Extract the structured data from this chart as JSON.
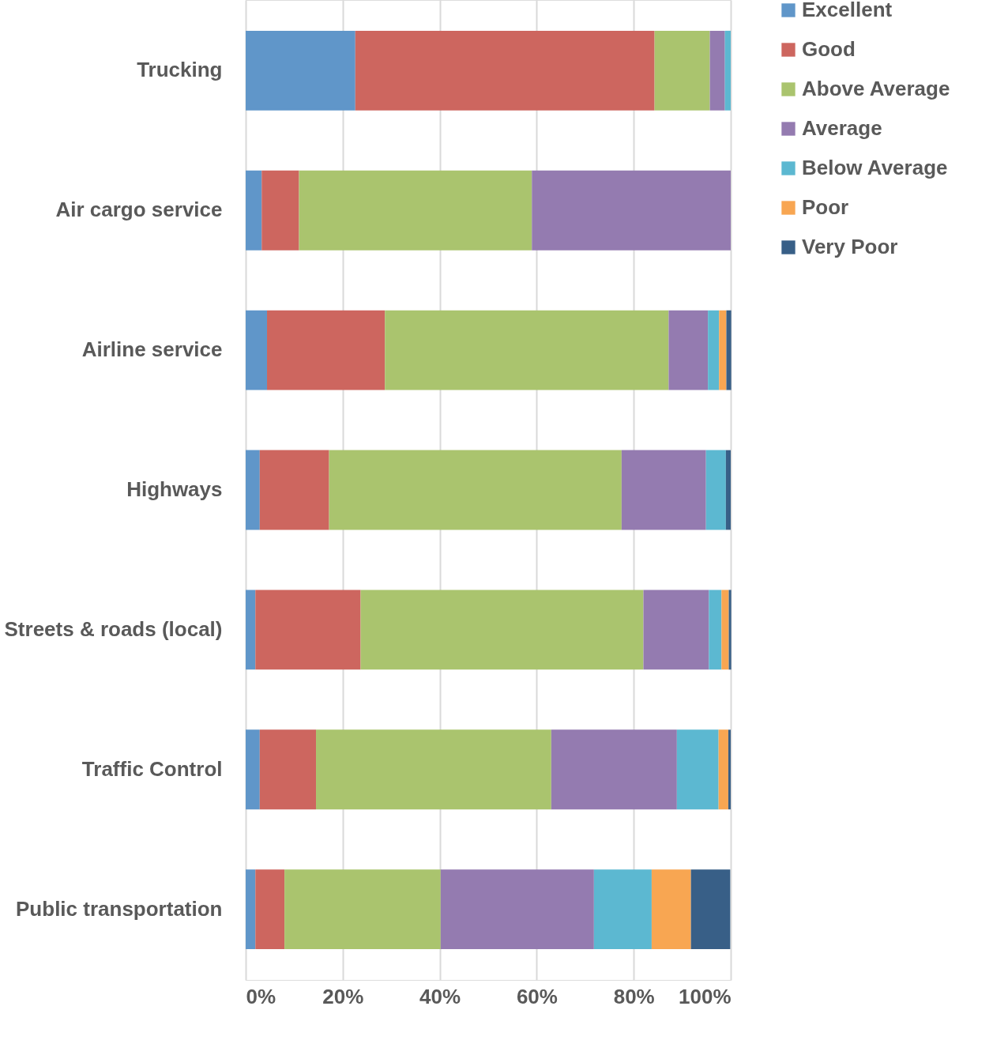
{
  "chart_data": {
    "type": "bar",
    "orientation": "horizontal",
    "stacked": true,
    "categories": [
      "Trucking",
      "Air cargo service",
      "Airline service",
      "Highways",
      "Streets & roads (local)",
      "Traffic Control",
      "Public transportation"
    ],
    "series": [
      {
        "name": "Excellent",
        "color": "#6096c9",
        "values": [
          22.6,
          3.3,
          4.4,
          2.9,
          2.0,
          2.9,
          2.0
        ]
      },
      {
        "name": "Good",
        "color": "#cd665f",
        "values": [
          61.7,
          7.7,
          24.3,
          14.3,
          21.7,
          11.6,
          6.0
        ]
      },
      {
        "name": "Above Average",
        "color": "#aac46e",
        "values": [
          11.4,
          48.0,
          58.5,
          60.3,
          58.3,
          48.5,
          32.2
        ]
      },
      {
        "name": "Average",
        "color": "#947bb0",
        "values": [
          3.1,
          41.0,
          8.1,
          17.4,
          13.5,
          25.9,
          31.6
        ]
      },
      {
        "name": "Below Average",
        "color": "#5cb8d1",
        "values": [
          1.2,
          null,
          2.3,
          4.1,
          2.6,
          8.6,
          11.9
        ]
      },
      {
        "name": "Poor",
        "color": "#f8a652",
        "values": [
          null,
          null,
          1.5,
          null,
          1.5,
          2.0,
          8.1
        ]
      },
      {
        "name": "Very Poor",
        "color": "#385f87",
        "values": [
          null,
          null,
          1.0,
          1.0,
          0.5,
          0.5,
          8.1
        ]
      }
    ],
    "xlim": [
      0,
      100
    ],
    "xticks": [
      {
        "value": 0,
        "label": "0%"
      },
      {
        "value": 20,
        "label": "20%"
      },
      {
        "value": 40,
        "label": "40%"
      },
      {
        "value": 60,
        "label": "60%"
      },
      {
        "value": 80,
        "label": "80%"
      },
      {
        "value": 100,
        "label": "100%"
      }
    ],
    "grid": "x",
    "legend": "right"
  }
}
